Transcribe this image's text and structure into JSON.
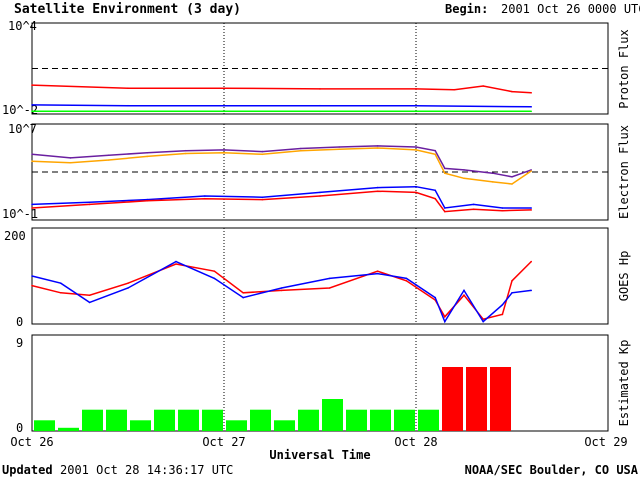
{
  "header": {
    "title": "Satellite Environment (3 day)",
    "begin_label": "Begin:",
    "begin_value": "2001 Oct 26 0000 UTC"
  },
  "footer": {
    "updated_label": "Updated",
    "updated_value": "2001 Oct 28 14:36:17 UTC",
    "credit": "NOAA/SEC Boulder, CO USA"
  },
  "colors": {
    "proton_red": "#ff0000",
    "proton_blue": "#0000ff",
    "proton_green": "#00ff00",
    "electron_purple": "#6a1fa0",
    "electron_orange": "#ffa500",
    "kp_green": "#00ff00",
    "kp_red": "#ff0000"
  },
  "chart_data": [
    {
      "type": "line",
      "title": "Satellite Environment (3 day)",
      "ylabel": "Proton Flux",
      "yscale": "log",
      "ylim": [
        0.01,
        10000
      ],
      "y_tick_labels": [
        "10^4",
        "10^-2"
      ],
      "threshold": 10,
      "xlim_days": [
        0,
        3
      ],
      "x_tick_labels": [
        "Oct 26",
        "Oct 27",
        "Oct 28",
        "Oct 29"
      ],
      "series": [
        {
          "color": "red",
          "x_days": [
            0,
            0.5,
            1.0,
            1.5,
            2.0,
            2.2,
            2.35,
            2.5,
            2.6
          ],
          "values": [
            0.8,
            0.5,
            0.5,
            0.45,
            0.45,
            0.4,
            0.7,
            0.3,
            0.25
          ]
        },
        {
          "color": "blue",
          "x_days": [
            0,
            0.5,
            1.0,
            1.5,
            2.0,
            2.6
          ],
          "values": [
            0.04,
            0.035,
            0.035,
            0.035,
            0.035,
            0.03
          ]
        },
        {
          "color": "green",
          "x_days": [
            0,
            0.5,
            1.0,
            1.5,
            2.0,
            2.6
          ],
          "values": [
            0.015,
            0.015,
            0.015,
            0.015,
            0.015,
            0.015
          ]
        }
      ],
      "grid": "vertical dotted at day boundaries"
    },
    {
      "type": "line",
      "ylabel": "Electron Flux",
      "yscale": "log",
      "ylim": [
        0.1,
        10000000
      ],
      "y_tick_labels": [
        "10^7",
        "10^-1"
      ],
      "threshold": 1000,
      "xlim_days": [
        0,
        3
      ],
      "series": [
        {
          "color": "purple",
          "x_days": [
            0,
            0.2,
            0.4,
            0.6,
            0.8,
            1.0,
            1.2,
            1.4,
            1.6,
            1.8,
            2.0,
            2.1,
            2.15,
            2.25,
            2.4,
            2.5,
            2.6
          ],
          "values": [
            30000,
            15000,
            25000,
            40000,
            60000,
            70000,
            50000,
            90000,
            120000,
            150000,
            120000,
            60000,
            2000,
            1500,
            800,
            400,
            1500
          ]
        },
        {
          "color": "orange",
          "x_days": [
            0,
            0.2,
            0.4,
            0.6,
            0.8,
            1.0,
            1.2,
            1.4,
            1.6,
            1.8,
            2.0,
            2.1,
            2.15,
            2.25,
            2.4,
            2.5,
            2.6
          ],
          "values": [
            8000,
            6000,
            10000,
            20000,
            35000,
            40000,
            30000,
            60000,
            80000,
            100000,
            70000,
            30000,
            800,
            300,
            150,
            100,
            1200
          ]
        },
        {
          "color": "blue",
          "x_days": [
            0,
            0.3,
            0.6,
            0.9,
            1.2,
            1.5,
            1.8,
            2.0,
            2.1,
            2.15,
            2.3,
            2.45,
            2.6
          ],
          "values": [
            2,
            3,
            5,
            10,
            8,
            20,
            50,
            60,
            30,
            1,
            2,
            1,
            1
          ]
        },
        {
          "color": "red",
          "x_days": [
            0,
            0.3,
            0.6,
            0.9,
            1.2,
            1.5,
            1.8,
            2.0,
            2.1,
            2.15,
            2.3,
            2.45,
            2.6
          ],
          "values": [
            1,
            2,
            4,
            6,
            5,
            10,
            25,
            20,
            6,
            0.5,
            0.8,
            0.6,
            0.7
          ]
        }
      ],
      "grid": "vertical dotted at day boundaries"
    },
    {
      "type": "line",
      "ylabel": "GOES Hp",
      "ylim": [
        0,
        200
      ],
      "y_tick_labels": [
        "200",
        "0"
      ],
      "xlim_days": [
        0,
        3
      ],
      "series": [
        {
          "color": "red",
          "x_days": [
            0,
            0.15,
            0.3,
            0.5,
            0.75,
            0.95,
            1.1,
            1.3,
            1.55,
            1.8,
            1.95,
            2.1,
            2.15,
            2.25,
            2.35,
            2.45,
            2.5,
            2.6
          ],
          "values": [
            80,
            65,
            60,
            85,
            125,
            110,
            65,
            70,
            75,
            110,
            90,
            50,
            15,
            60,
            10,
            20,
            90,
            130
          ]
        },
        {
          "color": "blue",
          "x_days": [
            0,
            0.15,
            0.3,
            0.5,
            0.75,
            0.95,
            1.1,
            1.3,
            1.55,
            1.8,
            1.95,
            2.1,
            2.15,
            2.25,
            2.35,
            2.45,
            2.5,
            2.6
          ],
          "values": [
            100,
            85,
            45,
            75,
            130,
            95,
            55,
            75,
            95,
            105,
            95,
            55,
            5,
            70,
            5,
            40,
            65,
            70
          ]
        }
      ],
      "grid": "vertical dotted at day boundaries"
    },
    {
      "type": "bar",
      "ylabel": "Estimated Kp",
      "ylim": [
        0,
        9
      ],
      "y_tick_labels": [
        "9",
        "0"
      ],
      "xlabel": "Universal Time",
      "bar_width_days": 0.125,
      "values": [
        1,
        0,
        2,
        2,
        1,
        2,
        2,
        2,
        1,
        2,
        1,
        2,
        3,
        2,
        2,
        2,
        2,
        6,
        6,
        6
      ],
      "colors": [
        "green",
        "green",
        "green",
        "green",
        "green",
        "green",
        "green",
        "green",
        "green",
        "green",
        "green",
        "green",
        "green",
        "green",
        "green",
        "green",
        "green",
        "red",
        "red",
        "red"
      ]
    }
  ]
}
